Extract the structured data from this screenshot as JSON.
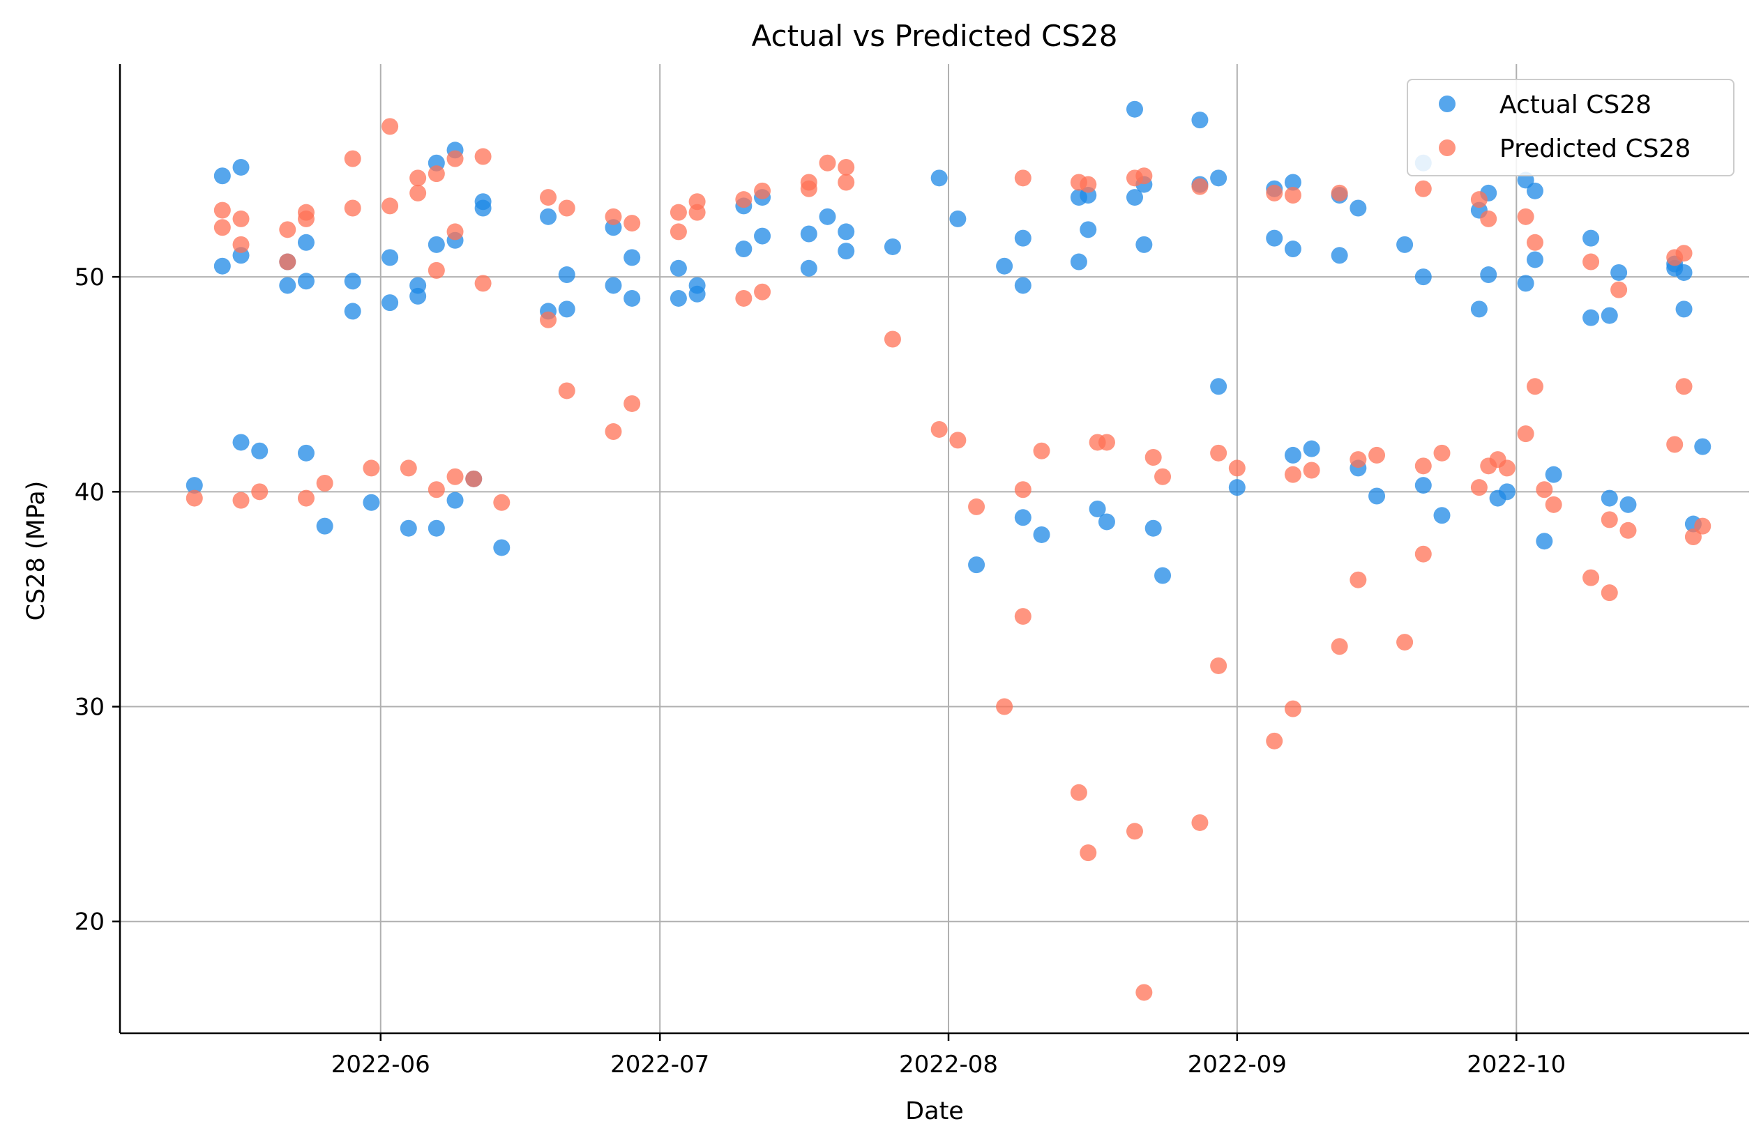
{
  "chart_data": {
    "type": "scatter",
    "title": "Actual vs Predicted CS28",
    "xlabel": "Date",
    "ylabel": "CS28 (MPa)",
    "x_ticks": [
      "2022-06",
      "2022-07",
      "2022-08",
      "2022-09",
      "2022-10"
    ],
    "y_ticks": [
      20,
      30,
      40,
      50
    ],
    "xlim": [
      "2022-05-04",
      "2022-10-26"
    ],
    "ylim": [
      14.8,
      59.9
    ],
    "grid": true,
    "legend_position": "top-right",
    "colors": {
      "actual": "#1E88E5",
      "predicted": "#FF7256",
      "grid": "#b0b0b0"
    },
    "series": [
      {
        "name": "Actual CS28",
        "points": [
          [
            "2022-05-12",
            40.3
          ],
          [
            "2022-05-15",
            54.7
          ],
          [
            "2022-05-15",
            50.5
          ],
          [
            "2022-05-17",
            55.1
          ],
          [
            "2022-05-17",
            51.0
          ],
          [
            "2022-05-17",
            42.3
          ],
          [
            "2022-05-19",
            41.9
          ],
          [
            "2022-05-22",
            50.7
          ],
          [
            "2022-05-22",
            49.6
          ],
          [
            "2022-05-24",
            51.6
          ],
          [
            "2022-05-24",
            49.8
          ],
          [
            "2022-05-24",
            41.8
          ],
          [
            "2022-05-26",
            38.4
          ],
          [
            "2022-05-29",
            49.8
          ],
          [
            "2022-05-29",
            48.4
          ],
          [
            "2022-05-31",
            39.5
          ],
          [
            "2022-06-02",
            50.9
          ],
          [
            "2022-06-02",
            48.8
          ],
          [
            "2022-06-04",
            38.3
          ],
          [
            "2022-06-05",
            49.6
          ],
          [
            "2022-06-05",
            49.1
          ],
          [
            "2022-06-07",
            55.3
          ],
          [
            "2022-06-07",
            51.5
          ],
          [
            "2022-06-07",
            38.3
          ],
          [
            "2022-06-09",
            55.9
          ],
          [
            "2022-06-09",
            51.7
          ],
          [
            "2022-06-09",
            39.6
          ],
          [
            "2022-06-11",
            40.6
          ],
          [
            "2022-06-12",
            53.5
          ],
          [
            "2022-06-12",
            53.2
          ],
          [
            "2022-06-14",
            37.4
          ],
          [
            "2022-06-19",
            52.8
          ],
          [
            "2022-06-19",
            48.4
          ],
          [
            "2022-06-21",
            50.1
          ],
          [
            "2022-06-21",
            48.5
          ],
          [
            "2022-06-26",
            52.3
          ],
          [
            "2022-06-26",
            49.6
          ],
          [
            "2022-06-28",
            50.9
          ],
          [
            "2022-06-28",
            49.0
          ],
          [
            "2022-07-03",
            50.4
          ],
          [
            "2022-07-03",
            49.0
          ],
          [
            "2022-07-05",
            49.6
          ],
          [
            "2022-07-05",
            49.2
          ],
          [
            "2022-07-10",
            53.3
          ],
          [
            "2022-07-10",
            51.3
          ],
          [
            "2022-07-12",
            53.7
          ],
          [
            "2022-07-12",
            51.9
          ],
          [
            "2022-07-17",
            52.0
          ],
          [
            "2022-07-17",
            50.4
          ],
          [
            "2022-07-19",
            52.8
          ],
          [
            "2022-07-21",
            52.1
          ],
          [
            "2022-07-21",
            51.2
          ],
          [
            "2022-07-26",
            51.4
          ],
          [
            "2022-07-31",
            54.6
          ],
          [
            "2022-08-02",
            52.7
          ],
          [
            "2022-08-04",
            36.6
          ],
          [
            "2022-08-07",
            50.5
          ],
          [
            "2022-08-09",
            51.8
          ],
          [
            "2022-08-09",
            49.6
          ],
          [
            "2022-08-09",
            38.8
          ],
          [
            "2022-08-11",
            38.0
          ],
          [
            "2022-08-15",
            53.7
          ],
          [
            "2022-08-15",
            50.7
          ],
          [
            "2022-08-16",
            53.8
          ],
          [
            "2022-08-16",
            52.2
          ],
          [
            "2022-08-17",
            39.2
          ],
          [
            "2022-08-18",
            38.6
          ],
          [
            "2022-08-21",
            57.8
          ],
          [
            "2022-08-21",
            53.7
          ],
          [
            "2022-08-22",
            54.3
          ],
          [
            "2022-08-22",
            51.5
          ],
          [
            "2022-08-23",
            38.3
          ],
          [
            "2022-08-24",
            36.1
          ],
          [
            "2022-08-28",
            57.3
          ],
          [
            "2022-08-28",
            54.3
          ],
          [
            "2022-08-30",
            54.6
          ],
          [
            "2022-08-30",
            44.9
          ],
          [
            "2022-09-01",
            40.2
          ],
          [
            "2022-09-05",
            54.1
          ],
          [
            "2022-09-05",
            51.8
          ],
          [
            "2022-09-07",
            54.4
          ],
          [
            "2022-09-07",
            51.3
          ],
          [
            "2022-09-07",
            41.7
          ],
          [
            "2022-09-09",
            42.0
          ],
          [
            "2022-09-12",
            53.8
          ],
          [
            "2022-09-12",
            51.0
          ],
          [
            "2022-09-14",
            53.2
          ],
          [
            "2022-09-14",
            41.1
          ],
          [
            "2022-09-16",
            39.8
          ],
          [
            "2022-09-19",
            51.5
          ],
          [
            "2022-09-21",
            55.3
          ],
          [
            "2022-09-21",
            50.0
          ],
          [
            "2022-09-21",
            40.3
          ],
          [
            "2022-09-23",
            38.9
          ],
          [
            "2022-09-27",
            53.1
          ],
          [
            "2022-09-27",
            48.5
          ],
          [
            "2022-09-28",
            53.9
          ],
          [
            "2022-09-28",
            50.1
          ],
          [
            "2022-09-29",
            39.7
          ],
          [
            "2022-09-30",
            40.0
          ],
          [
            "2022-10-02",
            54.5
          ],
          [
            "2022-10-02",
            49.7
          ],
          [
            "2022-10-03",
            54.0
          ],
          [
            "2022-10-03",
            50.8
          ],
          [
            "2022-10-04",
            37.7
          ],
          [
            "2022-10-05",
            40.8
          ],
          [
            "2022-10-09",
            51.8
          ],
          [
            "2022-10-09",
            48.1
          ],
          [
            "2022-10-11",
            48.2
          ],
          [
            "2022-10-11",
            39.7
          ],
          [
            "2022-10-12",
            50.2
          ],
          [
            "2022-10-13",
            39.4
          ],
          [
            "2022-10-18",
            50.6
          ],
          [
            "2022-10-18",
            50.4
          ],
          [
            "2022-10-19",
            50.2
          ],
          [
            "2022-10-19",
            48.5
          ],
          [
            "2022-10-20",
            38.5
          ],
          [
            "2022-10-21",
            42.1
          ]
        ]
      },
      {
        "name": "Predicted CS28",
        "points": [
          [
            "2022-05-12",
            39.7
          ],
          [
            "2022-05-15",
            53.1
          ],
          [
            "2022-05-15",
            52.3
          ],
          [
            "2022-05-17",
            52.7
          ],
          [
            "2022-05-17",
            51.5
          ],
          [
            "2022-05-17",
            39.6
          ],
          [
            "2022-05-19",
            40.0
          ],
          [
            "2022-05-22",
            52.2
          ],
          [
            "2022-05-22",
            50.7
          ],
          [
            "2022-05-24",
            53.0
          ],
          [
            "2022-05-24",
            52.7
          ],
          [
            "2022-05-24",
            39.7
          ],
          [
            "2022-05-26",
            40.4
          ],
          [
            "2022-05-29",
            55.5
          ],
          [
            "2022-05-29",
            53.2
          ],
          [
            "2022-05-31",
            41.1
          ],
          [
            "2022-06-02",
            57.0
          ],
          [
            "2022-06-02",
            53.3
          ],
          [
            "2022-06-04",
            41.1
          ],
          [
            "2022-06-05",
            54.6
          ],
          [
            "2022-06-05",
            53.9
          ],
          [
            "2022-06-07",
            54.8
          ],
          [
            "2022-06-07",
            50.3
          ],
          [
            "2022-06-07",
            40.1
          ],
          [
            "2022-06-09",
            55.5
          ],
          [
            "2022-06-09",
            52.1
          ],
          [
            "2022-06-09",
            40.7
          ],
          [
            "2022-06-11",
            40.6
          ],
          [
            "2022-06-12",
            55.6
          ],
          [
            "2022-06-12",
            49.7
          ],
          [
            "2022-06-14",
            39.5
          ],
          [
            "2022-06-19",
            53.7
          ],
          [
            "2022-06-19",
            48.0
          ],
          [
            "2022-06-21",
            53.2
          ],
          [
            "2022-06-21",
            44.7
          ],
          [
            "2022-06-26",
            52.8
          ],
          [
            "2022-06-26",
            42.8
          ],
          [
            "2022-06-28",
            52.5
          ],
          [
            "2022-06-28",
            44.1
          ],
          [
            "2022-07-03",
            53.0
          ],
          [
            "2022-07-03",
            52.1
          ],
          [
            "2022-07-05",
            53.5
          ],
          [
            "2022-07-05",
            53.0
          ],
          [
            "2022-07-10",
            53.6
          ],
          [
            "2022-07-10",
            49.0
          ],
          [
            "2022-07-12",
            54.0
          ],
          [
            "2022-07-12",
            49.3
          ],
          [
            "2022-07-17",
            54.4
          ],
          [
            "2022-07-17",
            54.1
          ],
          [
            "2022-07-19",
            55.3
          ],
          [
            "2022-07-21",
            55.1
          ],
          [
            "2022-07-21",
            54.4
          ],
          [
            "2022-07-26",
            47.1
          ],
          [
            "2022-07-31",
            42.9
          ],
          [
            "2022-08-02",
            42.4
          ],
          [
            "2022-08-04",
            39.3
          ],
          [
            "2022-08-07",
            30.0
          ],
          [
            "2022-08-09",
            54.6
          ],
          [
            "2022-08-09",
            40.1
          ],
          [
            "2022-08-09",
            34.2
          ],
          [
            "2022-08-11",
            41.9
          ],
          [
            "2022-08-15",
            54.4
          ],
          [
            "2022-08-15",
            26.0
          ],
          [
            "2022-08-16",
            54.3
          ],
          [
            "2022-08-16",
            23.2
          ],
          [
            "2022-08-17",
            42.3
          ],
          [
            "2022-08-18",
            42.3
          ],
          [
            "2022-08-21",
            54.6
          ],
          [
            "2022-08-21",
            24.2
          ],
          [
            "2022-08-22",
            54.7
          ],
          [
            "2022-08-22",
            16.7
          ],
          [
            "2022-08-23",
            41.6
          ],
          [
            "2022-08-24",
            40.7
          ],
          [
            "2022-08-28",
            54.2
          ],
          [
            "2022-08-28",
            24.6
          ],
          [
            "2022-08-30",
            41.8
          ],
          [
            "2022-08-30",
            31.9
          ],
          [
            "2022-09-01",
            41.1
          ],
          [
            "2022-09-05",
            53.9
          ],
          [
            "2022-09-05",
            28.4
          ],
          [
            "2022-09-07",
            53.8
          ],
          [
            "2022-09-07",
            40.8
          ],
          [
            "2022-09-07",
            29.9
          ],
          [
            "2022-09-09",
            41.0
          ],
          [
            "2022-09-12",
            53.9
          ],
          [
            "2022-09-12",
            32.8
          ],
          [
            "2022-09-14",
            41.5
          ],
          [
            "2022-09-14",
            35.9
          ],
          [
            "2022-09-16",
            41.7
          ],
          [
            "2022-09-19",
            33.0
          ],
          [
            "2022-09-21",
            54.1
          ],
          [
            "2022-09-21",
            41.2
          ],
          [
            "2022-09-21",
            37.1
          ],
          [
            "2022-09-23",
            41.8
          ],
          [
            "2022-09-27",
            53.6
          ],
          [
            "2022-09-27",
            40.2
          ],
          [
            "2022-09-28",
            52.7
          ],
          [
            "2022-09-28",
            41.2
          ],
          [
            "2022-09-29",
            41.5
          ],
          [
            "2022-09-30",
            41.1
          ],
          [
            "2022-10-02",
            52.8
          ],
          [
            "2022-10-02",
            42.7
          ],
          [
            "2022-10-03",
            51.6
          ],
          [
            "2022-10-03",
            44.9
          ],
          [
            "2022-10-04",
            40.1
          ],
          [
            "2022-10-05",
            39.4
          ],
          [
            "2022-10-09",
            50.7
          ],
          [
            "2022-10-09",
            36.0
          ],
          [
            "2022-10-11",
            38.7
          ],
          [
            "2022-10-11",
            35.3
          ],
          [
            "2022-10-12",
            49.4
          ],
          [
            "2022-10-13",
            38.2
          ],
          [
            "2022-10-18",
            50.9
          ],
          [
            "2022-10-18",
            42.2
          ],
          [
            "2022-10-19",
            51.1
          ],
          [
            "2022-10-19",
            44.9
          ],
          [
            "2022-10-20",
            37.9
          ],
          [
            "2022-10-21",
            38.4
          ]
        ]
      }
    ]
  }
}
